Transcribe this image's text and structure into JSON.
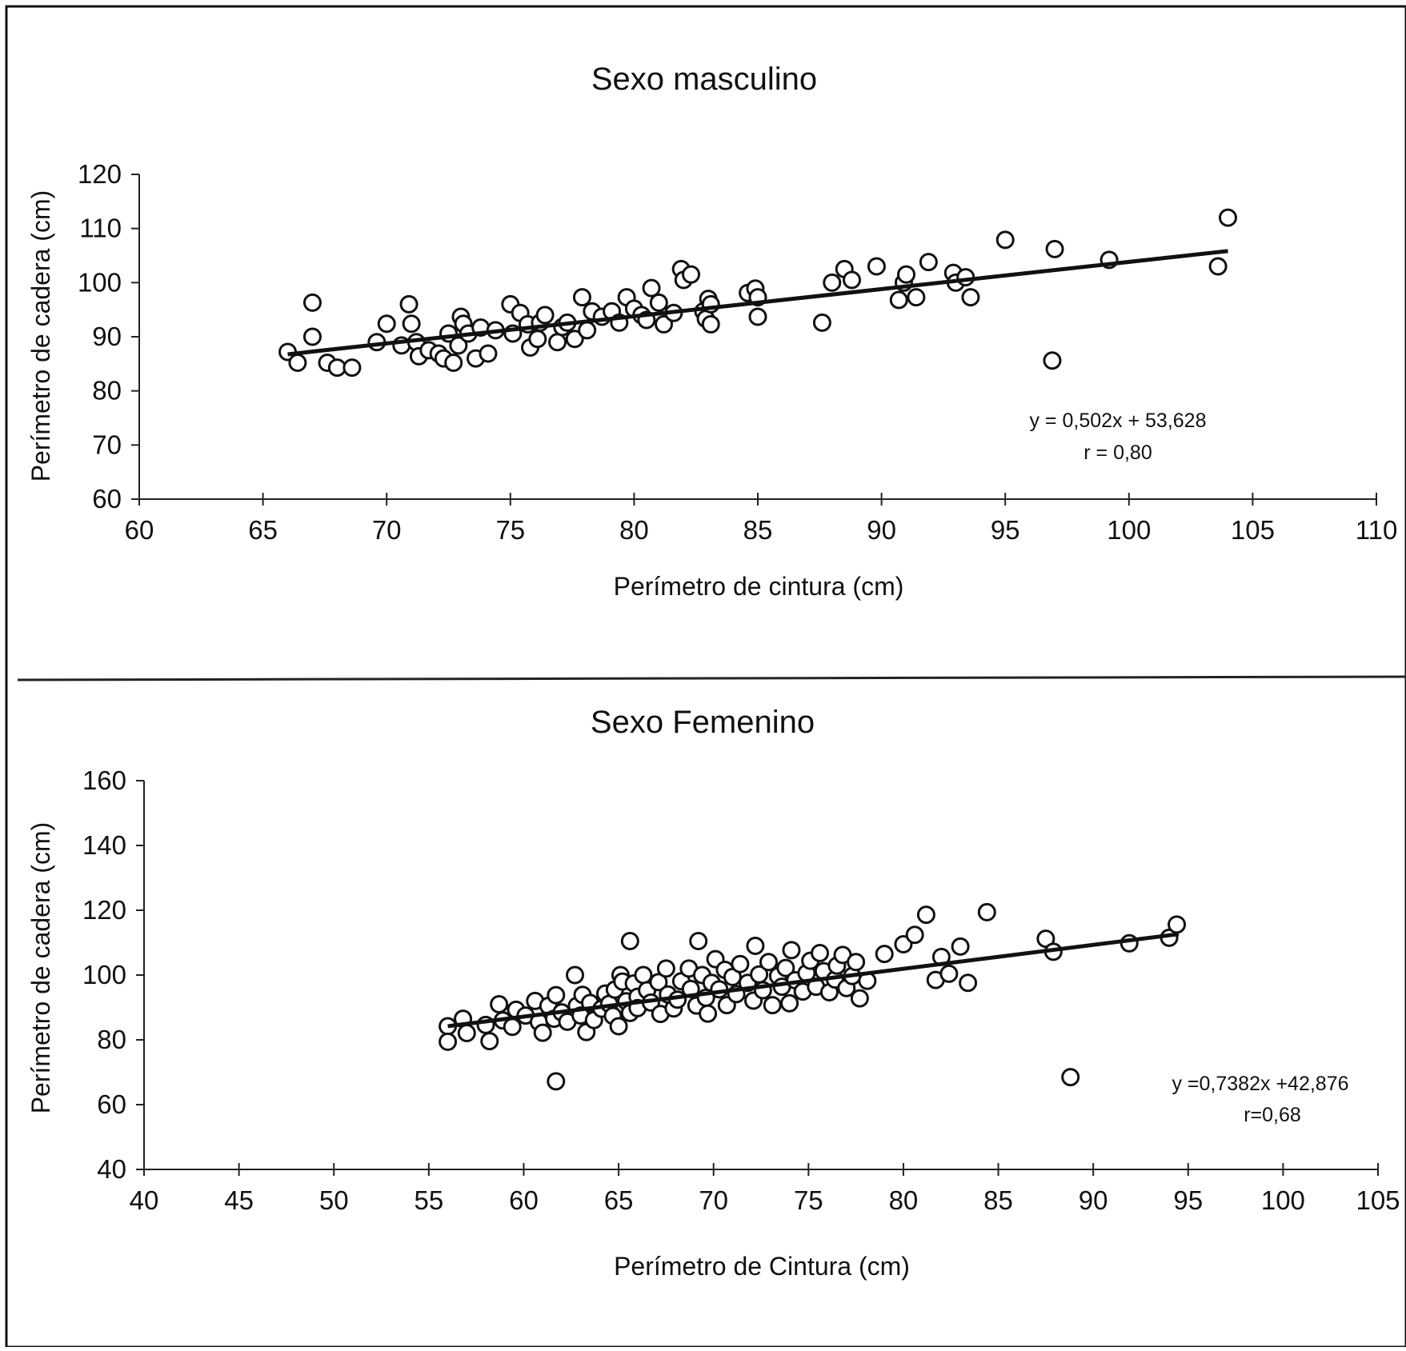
{
  "chart_data": [
    {
      "type": "scatter",
      "title": "Sexo masculino",
      "xlabel": "Perímetro de cintura (cm)",
      "ylabel": "Perímetro de cadera (cm)",
      "xlim": [
        60,
        110
      ],
      "ylim": [
        60,
        120
      ],
      "xticks": [
        60,
        65,
        70,
        75,
        80,
        85,
        90,
        95,
        100,
        105,
        110
      ],
      "yticks": [
        60,
        70,
        80,
        90,
        100,
        110,
        120
      ],
      "grid": false,
      "annotation": [
        "y = 0,502x + 53,628",
        "r = 0,80"
      ],
      "trendline": {
        "slope": 0.502,
        "intercept": 53.628,
        "x_range": [
          66,
          104
        ]
      },
      "series": [
        {
          "points": [
            [
              66,
              87.2
            ],
            [
              66.4,
              85.2
            ],
            [
              67,
              96.3
            ],
            [
              67,
              90
            ],
            [
              67.6,
              85.2
            ],
            [
              68,
              84.3
            ],
            [
              68.6,
              84.3
            ],
            [
              69.6,
              89
            ],
            [
              70,
              92.4
            ],
            [
              70.6,
              88.4
            ],
            [
              70.9,
              96
            ],
            [
              71,
              92.4
            ],
            [
              71.2,
              89
            ],
            [
              71.3,
              86.4
            ],
            [
              71.7,
              87.5
            ],
            [
              72.1,
              86.9
            ],
            [
              72.3,
              86
            ],
            [
              72.5,
              90.6
            ],
            [
              72.7,
              85.2
            ],
            [
              72.9,
              88.4
            ],
            [
              73,
              93.7
            ],
            [
              73.1,
              92.4
            ],
            [
              73.3,
              90.6
            ],
            [
              73.6,
              86
            ],
            [
              73.8,
              91.7
            ],
            [
              74.1,
              86.9
            ],
            [
              74.4,
              91.2
            ],
            [
              75,
              96
            ],
            [
              75.1,
              90.6
            ],
            [
              75.4,
              94.4
            ],
            [
              75.7,
              92.3
            ],
            [
              75.8,
              88
            ],
            [
              76.1,
              89.6
            ],
            [
              76.2,
              92.6
            ],
            [
              76.4,
              94
            ],
            [
              76.9,
              89
            ],
            [
              77.1,
              91.8
            ],
            [
              77.3,
              92.6
            ],
            [
              77.6,
              89.6
            ],
            [
              77.9,
              97.3
            ],
            [
              78.1,
              91.2
            ],
            [
              78.3,
              94.7
            ],
            [
              78.7,
              93.7
            ],
            [
              79.1,
              94.7
            ],
            [
              79.4,
              92.6
            ],
            [
              79.7,
              97.3
            ],
            [
              80,
              95.2
            ],
            [
              80.3,
              94
            ],
            [
              80.5,
              93.1
            ],
            [
              80.7,
              99
            ],
            [
              81,
              96.3
            ],
            [
              81.2,
              92.3
            ],
            [
              81.6,
              94.4
            ],
            [
              81.9,
              102.5
            ],
            [
              82,
              100.5
            ],
            [
              82.3,
              101.5
            ],
            [
              82.8,
              94.7
            ],
            [
              82.9,
              93.3
            ],
            [
              83,
              97
            ],
            [
              83.1,
              96
            ],
            [
              83.1,
              92.3
            ],
            [
              84.6,
              98.1
            ],
            [
              84.9,
              98.9
            ],
            [
              85,
              97.3
            ],
            [
              85,
              93.7
            ],
            [
              87.6,
              92.6
            ],
            [
              88,
              100
            ],
            [
              88.5,
              102.5
            ],
            [
              88.8,
              100.5
            ],
            [
              89.8,
              103
            ],
            [
              90.7,
              96.8
            ],
            [
              90.9,
              100
            ],
            [
              91,
              101.5
            ],
            [
              91.4,
              97.3
            ],
            [
              91.9,
              103.8
            ],
            [
              92.9,
              101.8
            ],
            [
              93,
              100
            ],
            [
              93.4,
              101
            ],
            [
              93.6,
              97.3
            ],
            [
              95,
              107.9
            ],
            [
              96.9,
              85.6
            ],
            [
              97,
              106.2
            ],
            [
              99.2,
              104.2
            ],
            [
              103.6,
              103
            ],
            [
              104,
              112
            ]
          ]
        }
      ]
    },
    {
      "type": "scatter",
      "title": "Sexo Femenino",
      "xlabel": "Perímetro de Cintura (cm)",
      "ylabel": "Perímetro de cadera (cm)",
      "xlim": [
        40,
        105
      ],
      "ylim": [
        40,
        160
      ],
      "xticks": [
        40,
        45,
        50,
        55,
        60,
        65,
        70,
        75,
        80,
        85,
        90,
        95,
        100,
        105
      ],
      "yticks": [
        40,
        60,
        80,
        100,
        120,
        140,
        160
      ],
      "grid": false,
      "annotation": [
        "y =0,7382x +42,876",
        "r=0,68"
      ],
      "trendline": {
        "slope": 0.7382,
        "intercept": 42.876,
        "x_range": [
          56,
          94.5
        ]
      },
      "series": [
        {
          "points": [
            [
              56,
              84.2
            ],
            [
              56,
              79.4
            ],
            [
              56.8,
              86.5
            ],
            [
              57,
              82.1
            ],
            [
              58,
              84.6
            ],
            [
              58.2,
              79.6
            ],
            [
              58.7,
              91
            ],
            [
              58.9,
              86
            ],
            [
              59.4,
              84
            ],
            [
              59.6,
              89.3
            ],
            [
              60.1,
              87.5
            ],
            [
              60.6,
              92
            ],
            [
              60.8,
              85.5
            ],
            [
              61,
              82.2
            ],
            [
              61.3,
              90.5
            ],
            [
              61.6,
              86.5
            ],
            [
              61.7,
              93.8
            ],
            [
              61.7,
              67.2
            ],
            [
              62,
              88.5
            ],
            [
              62.3,
              85.6
            ],
            [
              62.7,
              100
            ],
            [
              62.8,
              90.5
            ],
            [
              63,
              87.5
            ],
            [
              63.1,
              93.9
            ],
            [
              63.3,
              82.4
            ],
            [
              63.5,
              91.4
            ],
            [
              63.7,
              86.1
            ],
            [
              64.1,
              89.6
            ],
            [
              64.3,
              94.3
            ],
            [
              64.5,
              91.1
            ],
            [
              64.7,
              87.4
            ],
            [
              64.8,
              95.5
            ],
            [
              65,
              84.2
            ],
            [
              65.1,
              100
            ],
            [
              65.2,
              98
            ],
            [
              65.4,
              91.9
            ],
            [
              65.6,
              88.3
            ],
            [
              65.6,
              110.5
            ],
            [
              65.8,
              97.4
            ],
            [
              66,
              93.3
            ],
            [
              66,
              89.8
            ],
            [
              66.3,
              100
            ],
            [
              66.5,
              95.3
            ],
            [
              66.7,
              91.5
            ],
            [
              67.1,
              97.8
            ],
            [
              67.2,
              88
            ],
            [
              67.5,
              102
            ],
            [
              67.6,
              94
            ],
            [
              67.9,
              89.7
            ],
            [
              68.1,
              92.4
            ],
            [
              68.3,
              98.1
            ],
            [
              68.7,
              102
            ],
            [
              68.8,
              95.7
            ],
            [
              69.1,
              90.6
            ],
            [
              69.2,
              110.5
            ],
            [
              69.4,
              100
            ],
            [
              69.6,
              93
            ],
            [
              69.7,
              88.1
            ],
            [
              69.9,
              97.6
            ],
            [
              70.1,
              104.9
            ],
            [
              70.3,
              95.6
            ],
            [
              70.6,
              101.6
            ],
            [
              70.7,
              90.7
            ],
            [
              71,
              99.4
            ],
            [
              71.2,
              94.1
            ],
            [
              71.4,
              103.4
            ],
            [
              71.8,
              97.6
            ],
            [
              72.1,
              92.1
            ],
            [
              72.2,
              109
            ],
            [
              72.4,
              100.2
            ],
            [
              72.6,
              95.3
            ],
            [
              72.9,
              104
            ],
            [
              73.1,
              90.7
            ],
            [
              73.4,
              99.7
            ],
            [
              73.6,
              96.4
            ],
            [
              73.8,
              102.2
            ],
            [
              74,
              91.3
            ],
            [
              74.1,
              107.7
            ],
            [
              74.3,
              98.4
            ],
            [
              74.7,
              94.9
            ],
            [
              74.9,
              100.6
            ],
            [
              75.1,
              104.4
            ],
            [
              75.4,
              96.4
            ],
            [
              75.6,
              106.8
            ],
            [
              75.8,
              101.2
            ],
            [
              76.1,
              94.7
            ],
            [
              76.4,
              98.6
            ],
            [
              76.5,
              102.9
            ],
            [
              76.8,
              106.2
            ],
            [
              77,
              96
            ],
            [
              77.3,
              99.7
            ],
            [
              77.5,
              104
            ],
            [
              77.7,
              92.8
            ],
            [
              78.1,
              98.2
            ],
            [
              79,
              106.5
            ],
            [
              80,
              109.5
            ],
            [
              80.6,
              112.4
            ],
            [
              81.2,
              118.6
            ],
            [
              81.7,
              98.5
            ],
            [
              82,
              105.6
            ],
            [
              82.4,
              100.4
            ],
            [
              83,
              108.8
            ],
            [
              83.4,
              97.6
            ],
            [
              84.4,
              119.4
            ],
            [
              87.5,
              111.2
            ],
            [
              87.9,
              107.2
            ],
            [
              88.8,
              68.5
            ],
            [
              91.9,
              109.8
            ],
            [
              94,
              111.5
            ],
            [
              94.4,
              115.6
            ]
          ]
        }
      ]
    }
  ]
}
